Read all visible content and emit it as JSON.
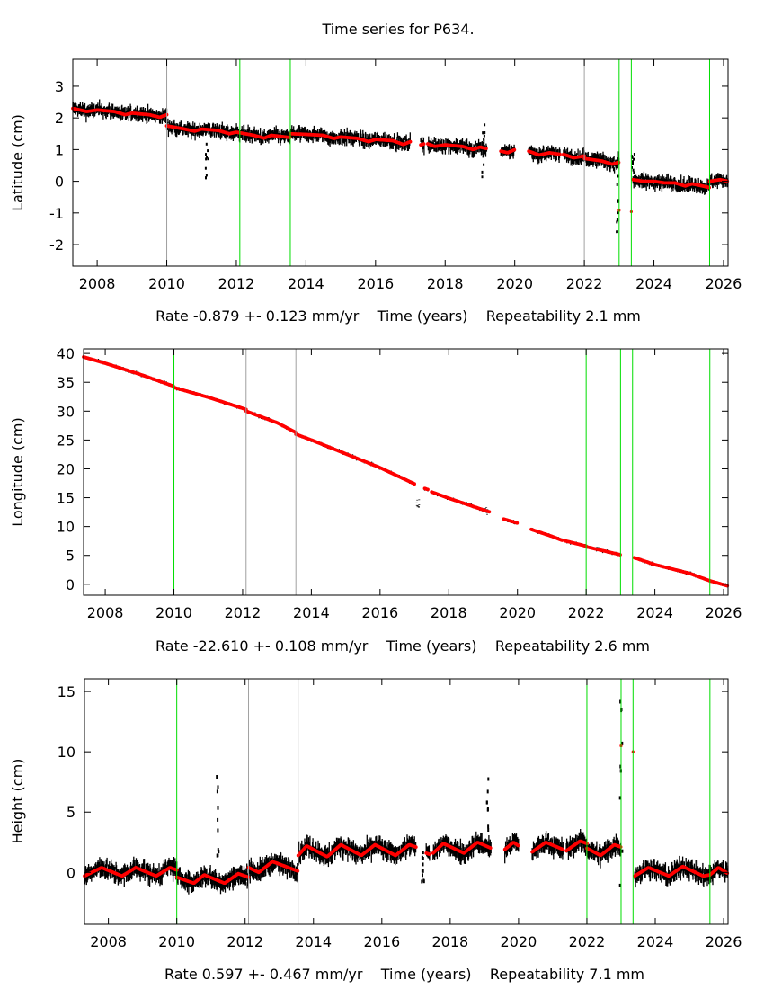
{
  "title": "Time series for P634.",
  "chart_data": [
    {
      "type": "scatter",
      "ylabel": "Latitude (cm)",
      "xlabel": "Rate -0.879 +- 0.123 mm/yr    Time (years)    Repeatability 2.1 mm",
      "xlim": [
        2007.3,
        2026.13
      ],
      "ylim": [
        -2.68,
        3.85
      ],
      "xticks": [
        2008,
        2010,
        2012,
        2014,
        2016,
        2018,
        2020,
        2022,
        2024,
        2026
      ],
      "yticks": [
        -2,
        -1,
        0,
        1,
        2,
        3
      ],
      "grid": false,
      "colors": {
        "observations": "#000000",
        "model": "#ff0000",
        "break_green": "#00dd00",
        "break_gray": "#a0a0a0"
      },
      "breaks": [
        {
          "x": 2010.0,
          "color": "gray"
        },
        {
          "x": 2012.1,
          "color": "green"
        },
        {
          "x": 2013.55,
          "color": "green"
        },
        {
          "x": 2022.0,
          "color": "gray"
        },
        {
          "x": 2023.0,
          "color": "green"
        },
        {
          "x": 2023.35,
          "color": "green"
        },
        {
          "x": 2025.6,
          "color": "green"
        }
      ],
      "scatter_cm": 0.28,
      "model_segments": [
        [
          [
            2007.3,
            2.3
          ],
          [
            2007.7,
            2.2
          ],
          [
            2008.0,
            2.25
          ],
          [
            2008.5,
            2.2
          ],
          [
            2008.8,
            2.1
          ],
          [
            2009.0,
            2.15
          ],
          [
            2009.5,
            2.1
          ],
          [
            2009.8,
            2.02
          ],
          [
            2010.0,
            2.1
          ]
        ],
        [
          [
            2010.0,
            1.75
          ],
          [
            2010.5,
            1.65
          ],
          [
            2010.8,
            1.58
          ],
          [
            2011.0,
            1.65
          ],
          [
            2011.5,
            1.6
          ],
          [
            2011.8,
            1.5
          ],
          [
            2012.0,
            1.55
          ],
          [
            2012.5,
            1.45
          ],
          [
            2012.8,
            1.36
          ],
          [
            2013.0,
            1.45
          ],
          [
            2013.55,
            1.38
          ]
        ],
        [
          [
            2013.55,
            1.5
          ],
          [
            2014.0,
            1.48
          ],
          [
            2014.5,
            1.45
          ],
          [
            2014.8,
            1.35
          ],
          [
            2015.0,
            1.4
          ],
          [
            2015.5,
            1.35
          ],
          [
            2015.8,
            1.25
          ],
          [
            2016.0,
            1.32
          ],
          [
            2016.5,
            1.28
          ],
          [
            2016.8,
            1.16
          ],
          [
            2017.0,
            1.25
          ]
        ],
        [
          [
            2017.3,
            1.15
          ],
          [
            2017.4,
            1.18
          ]
        ],
        [
          [
            2017.5,
            1.18
          ],
          [
            2017.7,
            1.1
          ],
          [
            2018.0,
            1.15
          ],
          [
            2018.5,
            1.1
          ],
          [
            2018.8,
            1.0
          ],
          [
            2019.0,
            1.08
          ],
          [
            2019.2,
            1.03
          ]
        ],
        [
          [
            2019.6,
            0.95
          ],
          [
            2019.8,
            0.9
          ],
          [
            2020.0,
            1.0
          ]
        ],
        [
          [
            2020.4,
            0.95
          ],
          [
            2020.7,
            0.83
          ],
          [
            2021.0,
            0.9
          ],
          [
            2021.3,
            0.85
          ]
        ],
        [
          [
            2021.4,
            0.85
          ],
          [
            2021.7,
            0.74
          ],
          [
            2022.0,
            0.8
          ]
        ],
        [
          [
            2022.0,
            0.72
          ],
          [
            2022.5,
            0.64
          ],
          [
            2022.8,
            0.54
          ],
          [
            2023.0,
            0.6
          ]
        ],
        [
          [
            2023.0,
            -0.92
          ]
        ],
        [
          [
            2023.35,
            -0.96
          ]
        ],
        [
          [
            2023.4,
            0.05
          ],
          [
            2023.7,
            0.0
          ],
          [
            2024.0,
            0.0
          ],
          [
            2024.3,
            -0.05
          ],
          [
            2024.6,
            -0.05
          ],
          [
            2024.9,
            -0.15
          ],
          [
            2025.1,
            -0.08
          ],
          [
            2025.4,
            -0.15
          ],
          [
            2025.6,
            -0.2
          ]
        ],
        [
          [
            2025.6,
            0.0
          ],
          [
            2025.9,
            0.05
          ],
          [
            2026.13,
            0.0
          ]
        ]
      ],
      "outliers": [
        [
          2011.15,
          -0.1,
          1.3
        ],
        [
          2019.1,
          0.0,
          2.2
        ],
        [
          2022.95,
          -1.6,
          0.3
        ],
        [
          2023.4,
          0.1,
          0.95
        ]
      ]
    },
    {
      "type": "scatter",
      "ylabel": "Longitude (cm)",
      "xlabel": "Rate -22.610 +- 0.108 mm/yr    Time (years)    Repeatability 2.6 mm",
      "xlim": [
        2007.37,
        2026.13
      ],
      "ylim": [
        -1.9,
        40.8
      ],
      "xticks": [
        2008,
        2010,
        2012,
        2014,
        2016,
        2018,
        2020,
        2022,
        2024,
        2026
      ],
      "yticks": [
        0,
        5,
        10,
        15,
        20,
        25,
        30,
        35,
        40
      ],
      "grid": false,
      "colors": {
        "observations": "#000000",
        "model": "#ff0000",
        "break_green": "#00dd00",
        "break_gray": "#a0a0a0"
      },
      "breaks": [
        {
          "x": 2010.0,
          "color": "green"
        },
        {
          "x": 2012.1,
          "color": "gray"
        },
        {
          "x": 2013.55,
          "color": "gray"
        },
        {
          "x": 2022.0,
          "color": "green"
        },
        {
          "x": 2023.0,
          "color": "green"
        },
        {
          "x": 2023.35,
          "color": "green"
        },
        {
          "x": 2025.6,
          "color": "green"
        }
      ],
      "scatter_cm": 0.35,
      "model_segments": [
        [
          [
            2007.37,
            39.4
          ],
          [
            2008.0,
            38.3
          ],
          [
            2009.0,
            36.4
          ],
          [
            2010.0,
            34.3
          ]
        ],
        [
          [
            2010.0,
            34.1
          ],
          [
            2011.0,
            32.4
          ],
          [
            2012.1,
            30.3
          ]
        ],
        [
          [
            2012.1,
            30.0
          ],
          [
            2013.0,
            28.0
          ],
          [
            2013.55,
            26.3
          ]
        ],
        [
          [
            2013.55,
            26.0
          ],
          [
            2014.0,
            25.0
          ],
          [
            2015.0,
            22.6
          ],
          [
            2016.0,
            20.2
          ],
          [
            2017.0,
            17.4
          ]
        ],
        [
          [
            2017.3,
            16.6
          ],
          [
            2017.4,
            16.4
          ]
        ],
        [
          [
            2017.5,
            16.0
          ],
          [
            2018.0,
            14.9
          ],
          [
            2019.0,
            12.9
          ],
          [
            2019.2,
            12.5
          ]
        ],
        [
          [
            2019.6,
            11.3
          ],
          [
            2020.0,
            10.6
          ]
        ],
        [
          [
            2020.4,
            9.5
          ],
          [
            2021.0,
            8.3
          ],
          [
            2021.3,
            7.6
          ]
        ],
        [
          [
            2021.4,
            7.5
          ],
          [
            2022.0,
            6.6
          ]
        ],
        [
          [
            2022.0,
            6.5
          ],
          [
            2023.0,
            5.1
          ]
        ],
        [
          [
            2023.4,
            4.6
          ],
          [
            2024.0,
            3.4
          ],
          [
            2025.0,
            1.9
          ],
          [
            2025.6,
            0.6
          ]
        ],
        [
          [
            2025.6,
            0.6
          ],
          [
            2026.13,
            -0.3
          ]
        ]
      ],
      "outliers": [
        [
          2017.1,
          13.3,
          15.0
        ],
        [
          2019.1,
          12.0,
          13.5
        ]
      ]
    },
    {
      "type": "scatter",
      "ylabel": "Height (cm)",
      "xlabel": "Rate 0.597 +- 0.467 mm/yr    Time (years)    Repeatability 7.1 mm",
      "xlim": [
        2007.3,
        2026.13
      ],
      "ylim": [
        -4.3,
        16.05
      ],
      "xticks": [
        2008,
        2010,
        2012,
        2014,
        2016,
        2018,
        2020,
        2022,
        2024,
        2026
      ],
      "yticks": [
        0,
        5,
        10,
        15
      ],
      "grid": false,
      "colors": {
        "observations": "#000000",
        "model": "#ff0000",
        "break_green": "#00dd00",
        "break_gray": "#a0a0a0"
      },
      "breaks": [
        {
          "x": 2010.0,
          "color": "green"
        },
        {
          "x": 2012.1,
          "color": "gray"
        },
        {
          "x": 2013.55,
          "color": "gray"
        },
        {
          "x": 2022.0,
          "color": "green"
        },
        {
          "x": 2023.0,
          "color": "green"
        },
        {
          "x": 2023.35,
          "color": "green"
        },
        {
          "x": 2025.6,
          "color": "green"
        }
      ],
      "scatter_cm": 1.0,
      "model_segments": [
        [
          [
            2007.3,
            -0.3
          ],
          [
            2007.8,
            0.4
          ],
          [
            2008.4,
            -0.3
          ],
          [
            2008.8,
            0.4
          ],
          [
            2009.4,
            -0.3
          ],
          [
            2009.8,
            0.4
          ],
          [
            2010.0,
            0.2
          ]
        ],
        [
          [
            2010.0,
            -0.4
          ],
          [
            2010.5,
            -0.9
          ],
          [
            2010.8,
            -0.2
          ],
          [
            2011.4,
            -0.9
          ],
          [
            2011.8,
            -0.1
          ],
          [
            2012.1,
            -0.4
          ]
        ],
        [
          [
            2012.1,
            0.4
          ],
          [
            2012.4,
            0.0
          ],
          [
            2012.8,
            0.9
          ],
          [
            2013.55,
            0.1
          ]
        ],
        [
          [
            2013.55,
            1.4
          ],
          [
            2013.8,
            2.2
          ],
          [
            2014.4,
            1.3
          ],
          [
            2014.8,
            2.3
          ],
          [
            2015.4,
            1.4
          ],
          [
            2015.8,
            2.3
          ],
          [
            2016.4,
            1.4
          ],
          [
            2016.8,
            2.3
          ],
          [
            2017.0,
            2.1
          ]
        ],
        [
          [
            2017.3,
            1.6
          ],
          [
            2017.4,
            1.5
          ]
        ],
        [
          [
            2017.5,
            1.6
          ],
          [
            2017.8,
            2.4
          ],
          [
            2018.4,
            1.6
          ],
          [
            2018.8,
            2.5
          ],
          [
            2019.2,
            2.0
          ]
        ],
        [
          [
            2019.6,
            1.9
          ],
          [
            2019.85,
            2.5
          ],
          [
            2020.0,
            2.2
          ]
        ],
        [
          [
            2020.4,
            1.7
          ],
          [
            2020.8,
            2.5
          ],
          [
            2021.3,
            1.9
          ]
        ],
        [
          [
            2021.4,
            1.8
          ],
          [
            2021.8,
            2.6
          ],
          [
            2022.0,
            2.4
          ]
        ],
        [
          [
            2022.0,
            2.0
          ],
          [
            2022.4,
            1.4
          ],
          [
            2022.8,
            2.3
          ],
          [
            2023.0,
            2.1
          ]
        ],
        [
          [
            2023.0,
            10.5
          ]
        ],
        [
          [
            2023.35,
            10.0
          ]
        ],
        [
          [
            2023.4,
            -0.3
          ],
          [
            2023.8,
            0.4
          ],
          [
            2024.4,
            -0.3
          ],
          [
            2024.8,
            0.5
          ],
          [
            2025.4,
            -0.3
          ],
          [
            2025.6,
            -0.2
          ]
        ],
        [
          [
            2025.6,
            -0.2
          ],
          [
            2025.85,
            0.4
          ],
          [
            2026.13,
            -0.1
          ]
        ]
      ],
      "outliers": [
        [
          2011.2,
          1.0,
          9.0
        ],
        [
          2019.1,
          2.0,
          11.0
        ],
        [
          2023.0,
          -1.5,
          15.0
        ],
        [
          2017.2,
          -0.8,
          2.0
        ]
      ]
    }
  ]
}
